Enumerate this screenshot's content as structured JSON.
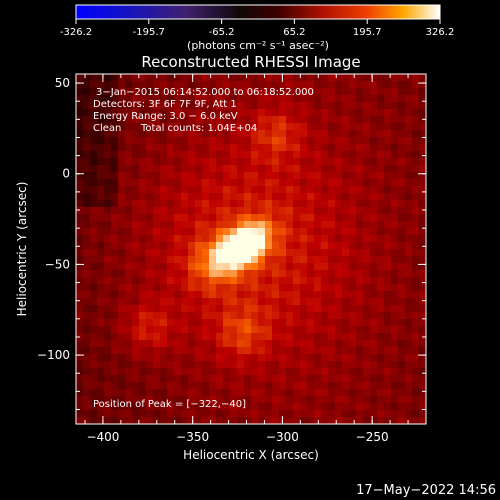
{
  "colorbar": {
    "ticks": [
      "-326.2",
      "-195.7",
      "-65.2",
      "65.2",
      "195.7",
      "326.2"
    ],
    "units_label": "(photons cm⁻² s⁻¹ asec⁻²)",
    "range": [
      -326.2,
      326.2
    ]
  },
  "chart_data": {
    "type": "heatmap",
    "title": "Reconstructed RHESSI Image",
    "xlabel": "Heliocentric X (arcsec)",
    "ylabel": "Heliocentric Y (arcsec)",
    "xlim": [
      -415,
      -220
    ],
    "ylim": [
      -138,
      55
    ],
    "xticks": [
      -400,
      -350,
      -300,
      -250
    ],
    "yticks": [
      50,
      0,
      -50,
      -100
    ],
    "peak": {
      "x": -322,
      "y": -40,
      "value": 326.2
    },
    "secondary_sources": [
      {
        "x": -340,
        "y": -50
      },
      {
        "x": -322,
        "y": -88
      },
      {
        "x": -375,
        "y": -85
      },
      {
        "x": -303,
        "y": 22
      }
    ],
    "annotations": [
      "3−Jan−2015 06:14:52.000 to 06:18:52.000",
      "Detectors: 3F 6F 7F 9F, Att 1",
      "Energy Range: 3.0 − 6.0 keV",
      "Clean",
      "Total counts: 1.04E+04",
      "Position of Peak = [−322,−40]"
    ]
  },
  "footer": {
    "timestamp": "17−May−2022 14:56"
  }
}
